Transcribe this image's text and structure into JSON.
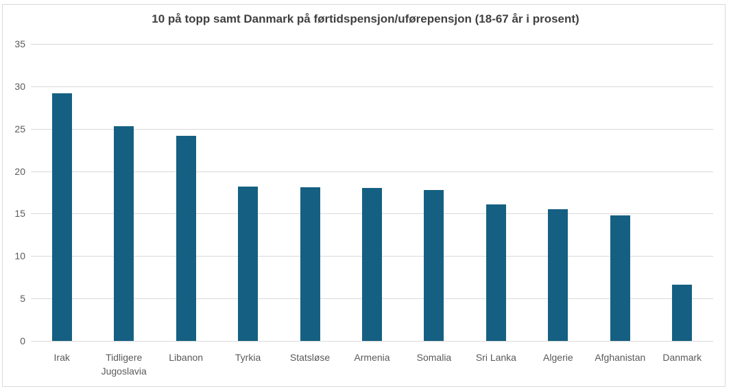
{
  "chart_data": {
    "type": "bar",
    "title": "10 på topp samt Danmark på førtidspensjon/uførepensjon (18-67 år i prosent)",
    "categories": [
      "Irak",
      "Tidligere Jugoslavia",
      "Libanon",
      "Tyrkia",
      "Statsløse",
      "Armenia",
      "Somalia",
      "Sri Lanka",
      "Algerie",
      "Afghanistan",
      "Danmark"
    ],
    "values": [
      29.2,
      25.3,
      24.2,
      18.2,
      18.1,
      18.0,
      17.8,
      16.1,
      15.5,
      14.8,
      6.6
    ],
    "xlabel": "",
    "ylabel": "",
    "ylim": [
      0,
      35
    ],
    "yticks": [
      0,
      5,
      10,
      15,
      20,
      25,
      30,
      35
    ],
    "grid": true,
    "legend": false,
    "colors": {
      "bar": "#156082",
      "gridline": "#D9D9D9",
      "axis_label": "#595959",
      "title": "#404040",
      "border": "#D9D9D9",
      "background": "#FFFFFF"
    }
  }
}
